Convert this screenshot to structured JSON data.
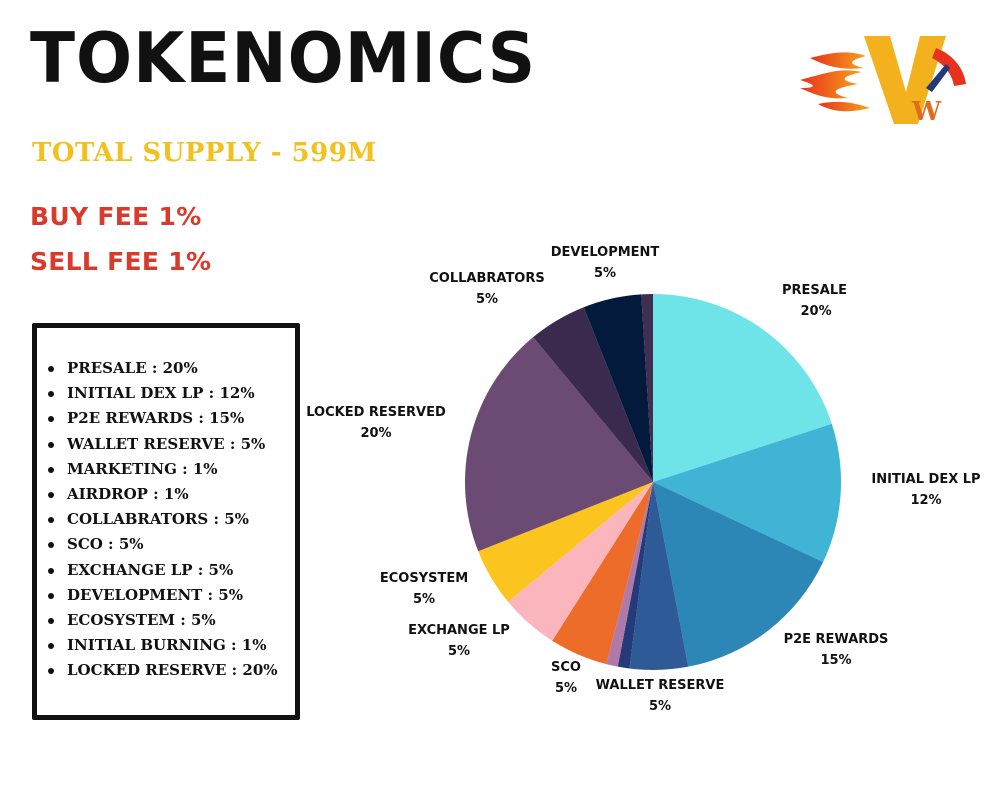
{
  "header": {
    "title": "TOKENOMICS",
    "supply": "TOTAL SUPPLY - 599M",
    "buy_fee": "BUY FEE 1%",
    "sell_fee": "SELL FEE 1%"
  },
  "colors": {
    "supply": "#f2c11d",
    "fee": "#d93a2a"
  },
  "logo": {
    "icon": "flame-logo-icon"
  },
  "legend_list": [
    "PRESALE : 20%",
    "INITIAL DEX LP : 12%",
    "P2E REWARDS : 15%",
    "WALLET RESERVE : 5%",
    "MARKETING : 1%",
    "AIRDROP : 1%",
    "COLLABRATORS : 5%",
    "SCO : 5%",
    "EXCHANGE LP : 5%",
    "DEVELOPMENT : 5%",
    "ECOSYSTEM : 5%",
    "INITIAL BURNING : 1%",
    "LOCKED RESERVE : 20%"
  ],
  "chart_data": {
    "type": "pie",
    "start": "12 o'clock",
    "direction": "clockwise",
    "slices": [
      {
        "label": "PRESALE",
        "value": 20,
        "value_label": "20%",
        "color": "#6ee3e8"
      },
      {
        "label": "INITIAL DEX LP",
        "value": 12,
        "value_label": "12%",
        "color": "#3fb4d5"
      },
      {
        "label": "P2E REWARDS",
        "value": 15,
        "value_label": "15%",
        "color": "#2d87b6"
      },
      {
        "label": "WALLET RESERVE",
        "value": 5,
        "value_label": "5%",
        "color": "#2e5a97"
      },
      {
        "label": "",
        "value": 1,
        "value_label": "",
        "color": "#253a78"
      },
      {
        "label": "",
        "value": 1,
        "value_label": "",
        "color": "#b07aa8"
      },
      {
        "label": "SCO",
        "value": 5,
        "value_label": "5%",
        "color": "#ee6c2a"
      },
      {
        "label": "EXCHANGE LP",
        "value": 5,
        "value_label": "5%",
        "color": "#fbb6bd"
      },
      {
        "label": "ECOSYSTEM",
        "value": 5,
        "value_label": "5%",
        "color": "#fcc41f"
      },
      {
        "label": "LOCKED RESERVED",
        "value": 20,
        "value_label": "20%",
        "color": "#6b4a74"
      },
      {
        "label": "COLLABRATORS",
        "value": 5,
        "value_label": "5%",
        "color": "#3a2b4e"
      },
      {
        "label": "DEVELOPMENT",
        "value": 5,
        "value_label": "5%",
        "color": "#031a3d"
      },
      {
        "label": "",
        "value": 1,
        "value_label": "",
        "color": "#402f52"
      }
    ]
  }
}
